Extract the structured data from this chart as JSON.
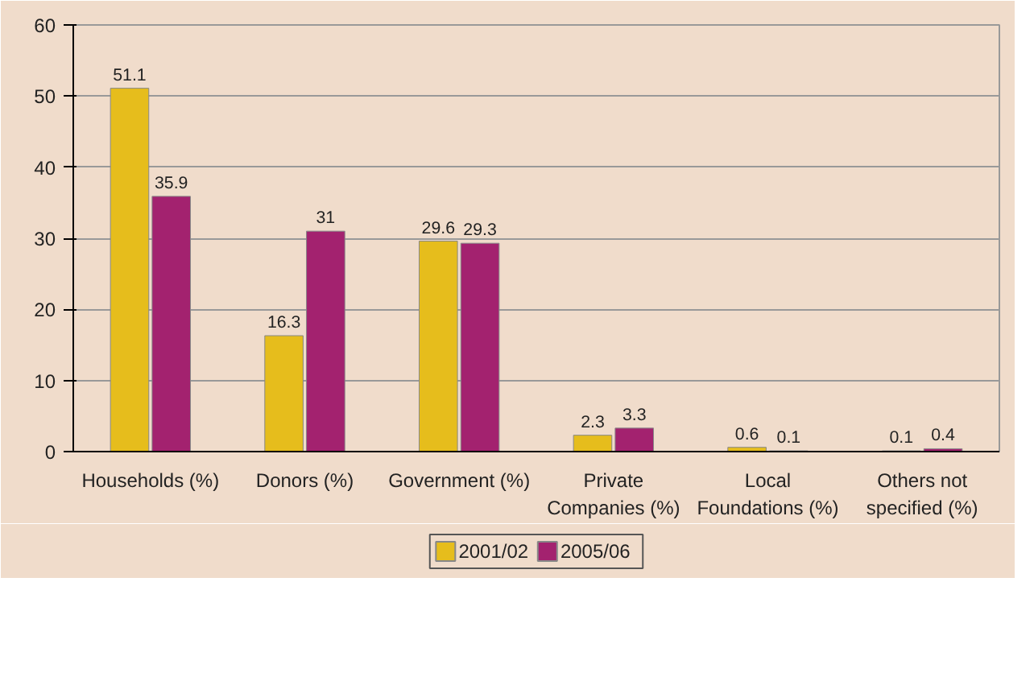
{
  "chart_data": {
    "type": "bar",
    "categories": [
      "Households (%)",
      "Donors (%)",
      "Government (%)",
      "Private Companies (%)",
      "Local Foundations (%)",
      "Others not specified (%)"
    ],
    "series": [
      {
        "name": "2001/02",
        "color": "#e6bd1c",
        "values": [
          51.1,
          16.3,
          29.6,
          2.3,
          0.6,
          0.1
        ]
      },
      {
        "name": "2005/06",
        "color": "#a3226f",
        "values": [
          35.9,
          31,
          29.3,
          3.3,
          0.1,
          0.4
        ]
      }
    ],
    "ylim": [
      0,
      60
    ],
    "yticks": [
      0,
      10,
      20,
      30,
      40,
      50,
      60
    ],
    "grid": "y",
    "legend": "bottom",
    "data_labels": true
  }
}
